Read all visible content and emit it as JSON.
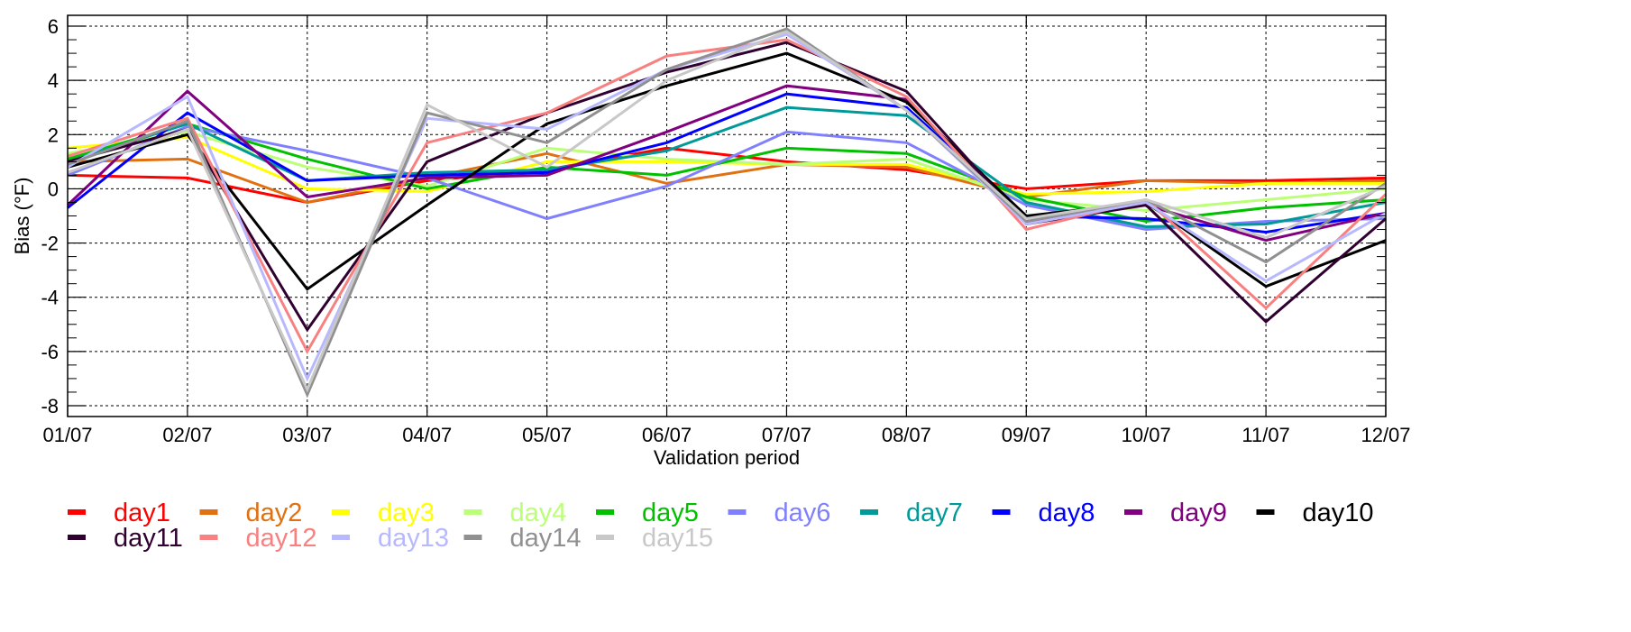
{
  "chart_data": {
    "type": "line",
    "title": "",
    "xlabel": "Validation period",
    "ylabel": "Bias (°F)",
    "categories": [
      "01/07",
      "02/07",
      "03/07",
      "04/07",
      "05/07",
      "06/07",
      "07/07",
      "08/07",
      "09/07",
      "10/07",
      "11/07",
      "12/07"
    ],
    "yticks": [
      "6",
      "4",
      "2",
      "0",
      "-2",
      "-4",
      "-6",
      "-8"
    ],
    "ylim": [
      -8.4,
      6.4
    ],
    "grid": true,
    "legend_position": "bottom",
    "series": [
      {
        "name": "day1",
        "color": "#ff0000",
        "values": [
          0.5,
          0.4,
          -0.5,
          0.3,
          0.7,
          1.5,
          1.0,
          0.7,
          0.0,
          0.3,
          0.3,
          0.4
        ]
      },
      {
        "name": "day2",
        "color": "#e07010",
        "values": [
          1.0,
          1.1,
          -0.5,
          0.4,
          1.3,
          0.2,
          0.9,
          0.8,
          -0.3,
          0.3,
          0.2,
          0.3
        ]
      },
      {
        "name": "day3",
        "color": "#ffff00",
        "values": [
          1.5,
          1.9,
          0.0,
          -0.1,
          1.0,
          1.0,
          0.9,
          0.9,
          -0.2,
          -0.1,
          0.2,
          0.2
        ]
      },
      {
        "name": "day4",
        "color": "#bbff77",
        "values": [
          1.3,
          2.1,
          0.8,
          0.1,
          1.5,
          1.1,
          0.9,
          1.1,
          -0.4,
          -0.8,
          -0.4,
          0.0
        ]
      },
      {
        "name": "day5",
        "color": "#00c000",
        "values": [
          1.1,
          2.4,
          1.1,
          0.0,
          0.8,
          0.5,
          1.5,
          1.3,
          -0.3,
          -1.2,
          -0.7,
          -0.4
        ]
      },
      {
        "name": "day6",
        "color": "#8080ff",
        "values": [
          0.5,
          2.3,
          1.4,
          0.4,
          -1.1,
          0.1,
          2.1,
          1.7,
          -0.6,
          -1.5,
          -1.2,
          -1.1
        ]
      },
      {
        "name": "day7",
        "color": "#009999",
        "values": [
          1.0,
          2.4,
          0.3,
          0.6,
          0.7,
          1.4,
          3.0,
          2.7,
          -0.5,
          -1.4,
          -1.3,
          -0.5
        ]
      },
      {
        "name": "day8",
        "color": "#0000ff",
        "values": [
          -0.7,
          2.8,
          0.3,
          0.5,
          0.6,
          1.7,
          3.5,
          3.0,
          -1.0,
          -1.1,
          -1.6,
          -0.9
        ]
      },
      {
        "name": "day9",
        "color": "#800080",
        "values": [
          -0.6,
          3.6,
          -0.3,
          0.4,
          0.5,
          2.1,
          3.8,
          3.3,
          -1.2,
          -0.6,
          -1.9,
          -0.9
        ]
      },
      {
        "name": "day10",
        "color": "#000000",
        "values": [
          0.8,
          2.0,
          -3.7,
          -0.6,
          2.4,
          3.8,
          5.0,
          3.2,
          -1.0,
          -0.5,
          -3.6,
          -1.9
        ]
      },
      {
        "name": "day11",
        "color": "#300030",
        "values": [
          1.0,
          2.2,
          -5.2,
          1.0,
          2.8,
          4.3,
          5.4,
          3.6,
          -1.3,
          -0.6,
          -4.9,
          -1.1
        ]
      },
      {
        "name": "day12",
        "color": "#f88080",
        "values": [
          1.2,
          2.6,
          -6.0,
          1.7,
          2.8,
          4.9,
          5.5,
          3.4,
          -1.5,
          -0.4,
          -4.4,
          -0.2
        ]
      },
      {
        "name": "day13",
        "color": "#b8b8ff",
        "values": [
          0.8,
          3.4,
          -7.0,
          2.6,
          2.2,
          4.4,
          5.7,
          2.9,
          -1.3,
          -0.5,
          -3.4,
          -0.9
        ]
      },
      {
        "name": "day14",
        "color": "#909090",
        "values": [
          0.9,
          2.5,
          -7.6,
          2.8,
          1.7,
          4.4,
          5.9,
          2.9,
          -1.2,
          -0.4,
          -2.7,
          0.2
        ]
      },
      {
        "name": "day15",
        "color": "#c8c8c8",
        "values": [
          0.6,
          2.2,
          -7.4,
          3.1,
          0.8,
          4.0,
          5.8,
          2.9,
          -1.1,
          -0.4,
          -1.8,
          0.1
        ]
      }
    ]
  }
}
